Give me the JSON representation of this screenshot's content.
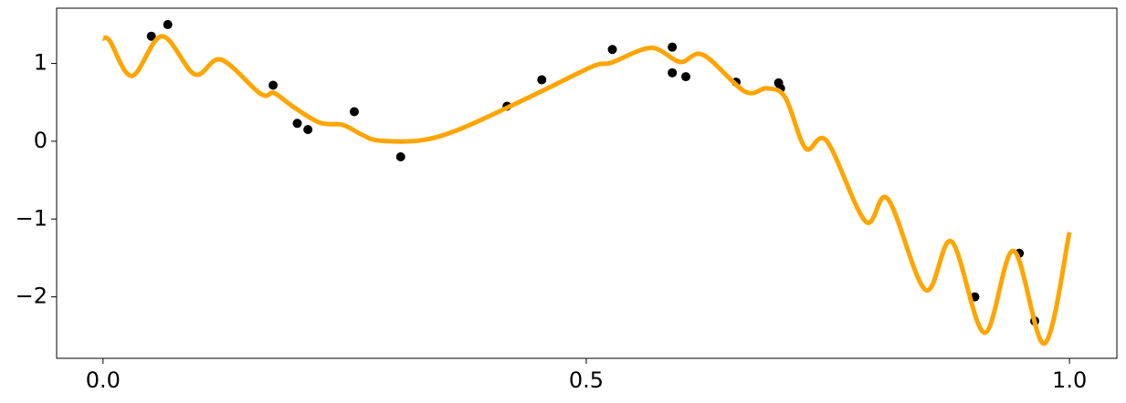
{
  "chart_data": {
    "type": "line",
    "xlim": [
      -0.048,
      1.049
    ],
    "ylim": [
      -2.79,
      1.71
    ],
    "xticks": [
      {
        "value": 0,
        "label": "0.0"
      },
      {
        "value": 0.5,
        "label": "0.5"
      },
      {
        "value": 1,
        "label": "1.0"
      }
    ],
    "yticks": [
      {
        "value": -2,
        "label": "−2"
      },
      {
        "value": -1,
        "label": "−1"
      },
      0,
      1
    ],
    "grid": false,
    "series": [
      {
        "type": "scatter",
        "color": "#000000",
        "x": [
          0.05,
          0.067,
          0.176,
          0.201,
          0.212,
          0.26,
          0.308,
          0.418,
          0.454,
          0.527,
          0.589,
          0.589,
          0.603,
          0.655,
          0.699,
          0.701,
          0.902,
          0.948,
          0.964
        ],
        "values": [
          1.35,
          1.5,
          0.72,
          0.23,
          0.15,
          0.38,
          -0.2,
          0.45,
          0.79,
          1.18,
          1.21,
          0.88,
          0.83,
          0.76,
          0.75,
          0.68,
          -2.0,
          -1.44,
          -2.31
        ]
      },
      {
        "type": "line",
        "color": "#ffa500",
        "x": [
          0.0,
          0.007,
          0.03,
          0.061,
          0.095,
          0.122,
          0.163,
          0.177,
          0.196,
          0.224,
          0.248,
          0.267,
          0.285,
          0.328,
          0.366,
          0.418,
          0.46,
          0.508,
          0.526,
          0.567,
          0.597,
          0.621,
          0.664,
          0.687,
          0.706,
          0.727,
          0.749,
          0.789,
          0.812,
          0.851,
          0.878,
          0.912,
          0.942,
          0.974,
          1.0
        ],
        "values": [
          1.32,
          1.29,
          0.84,
          1.35,
          0.86,
          1.05,
          0.61,
          0.62,
          0.45,
          0.24,
          0.21,
          0.09,
          0.01,
          0.01,
          0.14,
          0.43,
          0.68,
          0.97,
          1.01,
          1.2,
          1.02,
          1.11,
          0.64,
          0.68,
          0.56,
          -0.09,
          0.0,
          -1.03,
          -0.74,
          -1.91,
          -1.29,
          -2.46,
          -1.41,
          -2.6,
          -1.17
        ]
      }
    ]
  }
}
